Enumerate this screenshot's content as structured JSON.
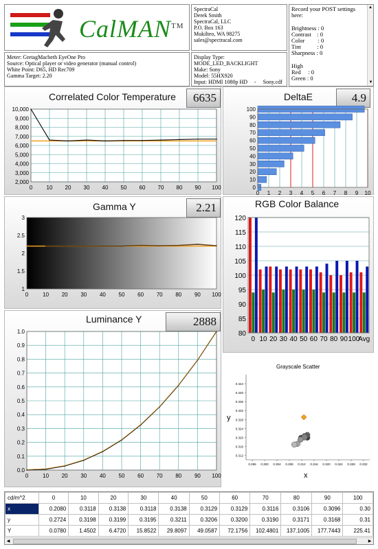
{
  "logo": {
    "text": "CalMAN",
    "tm": "TM"
  },
  "contact": [
    "SpectraCal",
    "Derek Smith",
    "SpectraCal, LLC",
    "P.O. Box 163",
    "Mukilteo, WA 98275",
    "sales@spectracal.com"
  ],
  "post_notes": [
    "Record your POST settings",
    "here:",
    "",
    "Brightness : 0",
    "Contrast    : 0",
    "Color         : 0",
    "Tint           : 0",
    "Sharpness : 0",
    "",
    "High",
    "Red     : 0",
    "Green : 0"
  ],
  "meter_info": [
    "Meter: GretagMacbeth EyeOne Pro",
    "Source: Optical player or video generator (manual control)",
    "White Point: D65, HD Rec709",
    "Gamma Target: 2.20"
  ],
  "display_info": [
    "Display Type:",
    "MODE_LED_BACKLIGHT",
    "Make: Sony",
    "Model: 55HX920",
    "Input: HDMI 1080p HD     -     Sony.cdf"
  ],
  "panels": {
    "cct": {
      "title": "Correlated Color Temperature",
      "value": "6635"
    },
    "deltae": {
      "title": "DeltaE",
      "value": "4.9"
    },
    "gamma": {
      "title": "Gamma Y",
      "value": "2.21"
    },
    "rgb": {
      "title": "RGB Color Balance"
    },
    "luminance": {
      "title": "Luminance Y",
      "value": "2888"
    },
    "scatter": {
      "title": "Grayscale Scatter",
      "xlabel": "x",
      "ylabel": "y"
    }
  },
  "colors": {
    "orange": "#f0a020",
    "blue": "#5b8fe0",
    "red": "#e01818",
    "green": "#1a7a1a",
    "navy": "#0a18b0",
    "teal": "#4aa0a0"
  },
  "chart_data": [
    {
      "type": "line",
      "title": "Correlated Color Temperature",
      "x": [
        0,
        10,
        20,
        30,
        40,
        50,
        60,
        70,
        80,
        90,
        100
      ],
      "series": [
        {
          "values": [
            10000,
            6600,
            6500,
            6600,
            6500,
            6550,
            6550,
            6600,
            6650,
            6700,
            6700
          ]
        }
      ],
      "target": 6500,
      "xlim": [
        0,
        100
      ],
      "ylim": [
        2000,
        10000
      ],
      "yticks": [
        "2,000",
        "3,000",
        "4,000",
        "5,000",
        "6,000",
        "7,000",
        "8,000",
        "9,000",
        "10,000"
      ],
      "xticks": [
        "0",
        "10",
        "20",
        "30",
        "40",
        "50",
        "60",
        "70",
        "80",
        "90",
        "100"
      ]
    },
    {
      "type": "bar",
      "title": "DeltaE",
      "categories": [
        "0",
        "10",
        "20",
        "30",
        "40",
        "50",
        "60",
        "70",
        "80",
        "90",
        "100"
      ],
      "values": [
        0.3,
        0.8,
        1.7,
        2.4,
        3.2,
        4.2,
        5.2,
        6.1,
        7.5,
        8.6,
        9.7
      ],
      "xlim": [
        0,
        10
      ],
      "xticks": [
        "0",
        "1",
        "2",
        "3",
        "4",
        "5",
        "6",
        "7",
        "8",
        "9",
        "10"
      ],
      "yticks": [
        "0",
        "10",
        "20",
        "30",
        "40",
        "50",
        "60",
        "70",
        "80",
        "90",
        "100"
      ],
      "reference_lines": [
        3,
        5,
        10
      ]
    },
    {
      "type": "line",
      "title": "Gamma Y",
      "x": [
        10,
        20,
        30,
        40,
        50,
        60,
        70,
        80,
        90,
        100
      ],
      "series": [
        {
          "values": [
            2.2,
            2.2,
            2.2,
            2.2,
            2.2,
            2.22,
            2.21,
            2.22,
            2.25,
            2.21
          ]
        }
      ],
      "target": 2.2,
      "xlim": [
        0,
        100
      ],
      "ylim": [
        1,
        3
      ],
      "yticks": [
        "1",
        "1.5",
        "2",
        "2.5",
        "3"
      ],
      "xticks": [
        "0",
        "10",
        "20",
        "30",
        "40",
        "50",
        "60",
        "70",
        "80",
        "90",
        "100"
      ]
    },
    {
      "type": "bar",
      "title": "RGB Color Balance",
      "categories": [
        "0",
        "10",
        "20",
        "30",
        "40",
        "50",
        "60",
        "70",
        "80",
        "90",
        "100",
        "Avg"
      ],
      "series": [
        {
          "values": [
            120,
            102,
            103,
            102,
            102,
            102,
            102,
            101,
            100,
            100,
            101,
            101
          ]
        },
        {
          "values": [
            94,
            95,
            94,
            95,
            95,
            95,
            95,
            94,
            94,
            94,
            94,
            94
          ]
        },
        {
          "values": [
            120,
            103,
            103,
            103,
            103,
            103,
            103,
            104,
            105,
            105,
            105,
            103
          ]
        }
      ],
      "ylim": [
        80,
        120
      ],
      "yticks": [
        "80",
        "85",
        "90",
        "95",
        "100",
        "105",
        "110",
        "115",
        "120"
      ],
      "xticks": [
        "0",
        "10",
        "20",
        "30",
        "40",
        "50",
        "60",
        "70",
        "80",
        "90",
        "100",
        "Avg"
      ]
    },
    {
      "type": "line",
      "title": "Luminance Y",
      "x": [
        0,
        10,
        20,
        30,
        40,
        50,
        60,
        70,
        80,
        90,
        100
      ],
      "series": [
        {
          "values": [
            0,
            0.006,
            0.029,
            0.071,
            0.133,
            0.217,
            0.325,
            0.456,
            0.612,
            0.793,
            1.0
          ]
        }
      ],
      "xlim": [
        0,
        100
      ],
      "ylim": [
        0,
        1
      ],
      "yticks": [
        "0.0",
        "0.1",
        "0.2",
        "0.3",
        "0.4",
        "0.5",
        "0.6",
        "0.7",
        "0.8",
        "0.9",
        "1.0"
      ],
      "xticks": [
        "0",
        "10",
        "20",
        "30",
        "40",
        "50",
        "60",
        "70",
        "80",
        "90",
        "100"
      ]
    },
    {
      "type": "scatter",
      "title": "Grayscale Scatter",
      "xlabel": "x",
      "ylabel": "y",
      "points": [
        {
          "x": 0.3118,
          "y": 0.3198
        },
        {
          "x": 0.3138,
          "y": 0.3199
        },
        {
          "x": 0.3118,
          "y": 0.3195
        },
        {
          "x": 0.3138,
          "y": 0.3211
        },
        {
          "x": 0.3129,
          "y": 0.3206
        },
        {
          "x": 0.3129,
          "y": 0.32
        },
        {
          "x": 0.3116,
          "y": 0.319
        },
        {
          "x": 0.3106,
          "y": 0.3171
        },
        {
          "x": 0.3096,
          "y": 0.3168
        }
      ],
      "target": {
        "x": 0.3127,
        "y": 0.329
      },
      "xlim": [
        0.294,
        0.334
      ],
      "ylim": [
        0.31,
        0.348
      ],
      "xticks": [
        "0.296",
        "0.300",
        "0.304",
        "0.308",
        "0.312",
        "0.316",
        "0.320",
        "0.324",
        "0.328",
        "0.332"
      ],
      "yticks": [
        "0.312",
        "0.316",
        "0.320",
        "0.324",
        "0.328",
        "0.332",
        "0.336",
        "0.340",
        "0.344"
      ]
    }
  ],
  "table": {
    "headers": [
      "cd/m^2",
      "0",
      "10",
      "20",
      "30",
      "40",
      "50",
      "60",
      "70",
      "80",
      "90",
      "100"
    ],
    "rows": [
      {
        "label": "x",
        "values": [
          "0.2080",
          "0.3118",
          "0.3138",
          "0.3118",
          "0.3138",
          "0.3129",
          "0.3129",
          "0.3116",
          "0.3106",
          "0.3096",
          "0.30"
        ]
      },
      {
        "label": "y",
        "values": [
          "0.2724",
          "0.3198",
          "0.3199",
          "0.3195",
          "0.3211",
          "0.3206",
          "0.3200",
          "0.3190",
          "0.3171",
          "0.3168",
          "0.31"
        ]
      },
      {
        "label": "Y",
        "values": [
          "0.0780",
          "1.4502",
          "6.4720",
          "15.8522",
          "29.8097",
          "49.0587",
          "72.1756",
          "102.4801",
          "137.1005",
          "177.7443",
          "225.41"
        ]
      }
    ]
  }
}
